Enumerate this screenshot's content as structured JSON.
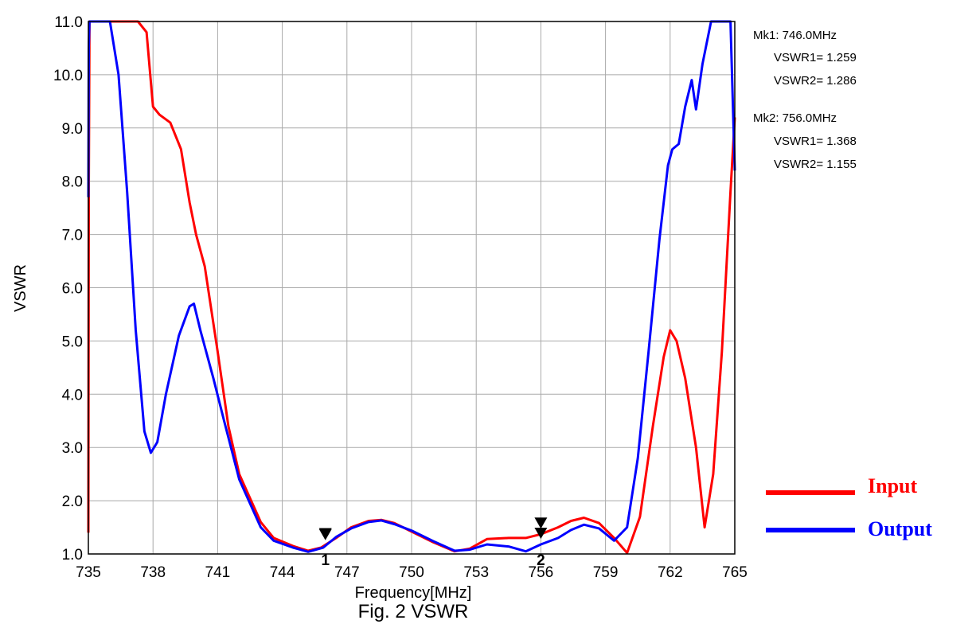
{
  "chart_data": {
    "type": "line",
    "xlabel": "Frequency[MHz]",
    "ylabel": "VSWR",
    "caption": "Fig. 2 VSWR",
    "xlim": [
      735,
      765
    ],
    "ylim": [
      1.0,
      11.0
    ],
    "grid": true,
    "x_ticks": [
      735,
      738,
      741,
      744,
      747,
      750,
      753,
      756,
      759,
      762,
      765
    ],
    "y_ticks": [
      1.0,
      2.0,
      3.0,
      4.0,
      5.0,
      6.0,
      7.0,
      8.0,
      9.0,
      10.0,
      11.0
    ],
    "x_tick_labels": [
      "735",
      "738",
      "741",
      "744",
      "747",
      "750",
      "753",
      "756",
      "759",
      "762",
      "765"
    ],
    "y_tick_labels": [
      "1.0",
      "2.0",
      "3.0",
      "4.0",
      "5.0",
      "6.0",
      "7.0",
      "8.0",
      "9.0",
      "10.0",
      "11.0"
    ],
    "legend_position": "bottom-right",
    "series": [
      {
        "name": "Input",
        "color": "#ff0000",
        "x": [
          735.0,
          735.02,
          735.05,
          736.5,
          737.3,
          737.7,
          738.0,
          738.3,
          738.8,
          739.3,
          739.7,
          740.0,
          740.4,
          741.0,
          741.5,
          742.0,
          743.0,
          743.6,
          744.5,
          745.2,
          745.8,
          746.5,
          747.2,
          748.0,
          748.6,
          749.2,
          750.0,
          751.0,
          752.0,
          752.7,
          753.5,
          754.5,
          755.3,
          756.0,
          756.8,
          757.4,
          758.0,
          758.7,
          759.4,
          760.0,
          760.6,
          761.2,
          761.7,
          762.0,
          762.3,
          762.7,
          763.2,
          763.6,
          764.0,
          764.4,
          764.8,
          765.0
        ],
        "values": [
          1.4,
          7.8,
          11.0,
          11.0,
          11.0,
          10.8,
          9.4,
          9.25,
          9.1,
          8.6,
          7.6,
          7.0,
          6.4,
          4.8,
          3.4,
          2.5,
          1.6,
          1.3,
          1.15,
          1.06,
          1.12,
          1.3,
          1.5,
          1.62,
          1.64,
          1.58,
          1.42,
          1.22,
          1.05,
          1.1,
          1.28,
          1.3,
          1.3,
          1.37,
          1.5,
          1.62,
          1.68,
          1.58,
          1.3,
          1.02,
          1.7,
          3.4,
          4.7,
          5.2,
          5.0,
          4.3,
          3.0,
          1.5,
          2.5,
          4.8,
          7.8,
          9.2
        ]
      },
      {
        "name": "Output",
        "color": "#0000ff",
        "x": [
          735.0,
          735.02,
          735.05,
          736.0,
          736.4,
          736.8,
          737.2,
          737.6,
          737.9,
          738.2,
          738.6,
          739.2,
          739.7,
          739.9,
          740.2,
          740.8,
          741.3,
          742.0,
          743.0,
          743.6,
          744.5,
          745.2,
          745.9,
          746.5,
          747.2,
          748.0,
          748.6,
          749.2,
          750.0,
          751.0,
          752.0,
          752.7,
          753.5,
          754.5,
          755.3,
          756.0,
          756.8,
          757.4,
          758.0,
          758.7,
          759.4,
          760.0,
          760.5,
          761.0,
          761.5,
          761.9,
          762.1,
          762.4,
          762.7,
          763.0,
          763.2,
          763.5,
          763.9,
          764.3,
          764.8,
          765.0
        ],
        "values": [
          7.7,
          10.5,
          11.0,
          11.0,
          10.0,
          7.8,
          5.2,
          3.3,
          2.9,
          3.1,
          4.0,
          5.1,
          5.65,
          5.7,
          5.2,
          4.3,
          3.5,
          2.4,
          1.5,
          1.25,
          1.12,
          1.04,
          1.12,
          1.32,
          1.48,
          1.6,
          1.63,
          1.56,
          1.44,
          1.24,
          1.06,
          1.08,
          1.18,
          1.14,
          1.05,
          1.18,
          1.3,
          1.45,
          1.55,
          1.48,
          1.25,
          1.5,
          2.8,
          4.8,
          6.9,
          8.3,
          8.6,
          8.7,
          9.4,
          9.9,
          9.35,
          10.2,
          11.0,
          11.0,
          11.0,
          8.2
        ]
      }
    ],
    "markers": [
      {
        "label": "1",
        "freq": 746.0
      },
      {
        "label": "2",
        "freq": 756.0
      }
    ],
    "marker_readout": [
      {
        "freq_line": "Mk1:  746.0MHz",
        "vswr1_line": "VSWR1= 1.259",
        "vswr2_line": "VSWR2= 1.286"
      },
      {
        "freq_line": "Mk2:  756.0MHz",
        "vswr1_line": "VSWR1= 1.368",
        "vswr2_line": "VSWR2= 1.155"
      }
    ]
  }
}
